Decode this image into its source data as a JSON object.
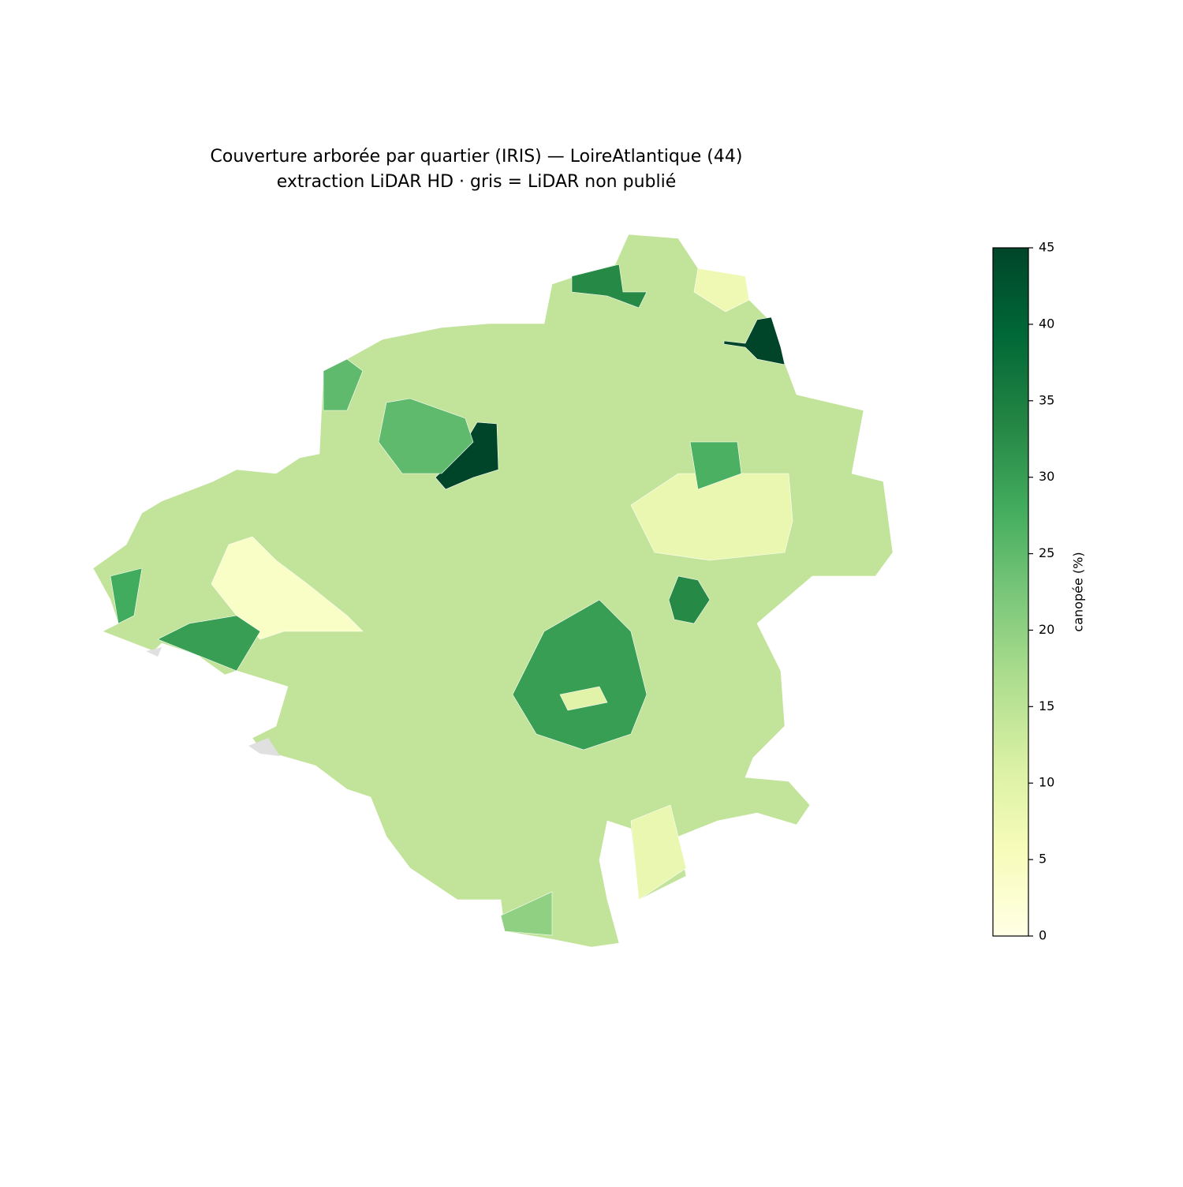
{
  "chart_data": {
    "type": "choropleth",
    "title": "Couverture arborée par quartier (IRIS) — LoireAtlantique (44)",
    "subtitle": "extraction LiDAR HD · gris = LiDAR non publié",
    "colorbar_label": "canopée (%)",
    "clim": [
      0,
      45
    ],
    "cticks": [
      0,
      5,
      10,
      15,
      20,
      25,
      30,
      35,
      40,
      45
    ],
    "colormap": [
      "#ffffe5",
      "#f7fcb9",
      "#d9f0a3",
      "#addd8e",
      "#78c679",
      "#41ab5d",
      "#238443",
      "#006837",
      "#004529"
    ],
    "missing_color": "#e0e0e0",
    "values": [
      45,
      45,
      4,
      8,
      8,
      30,
      10,
      33,
      33,
      27,
      20,
      7,
      28,
      30,
      25,
      25
    ]
  }
}
